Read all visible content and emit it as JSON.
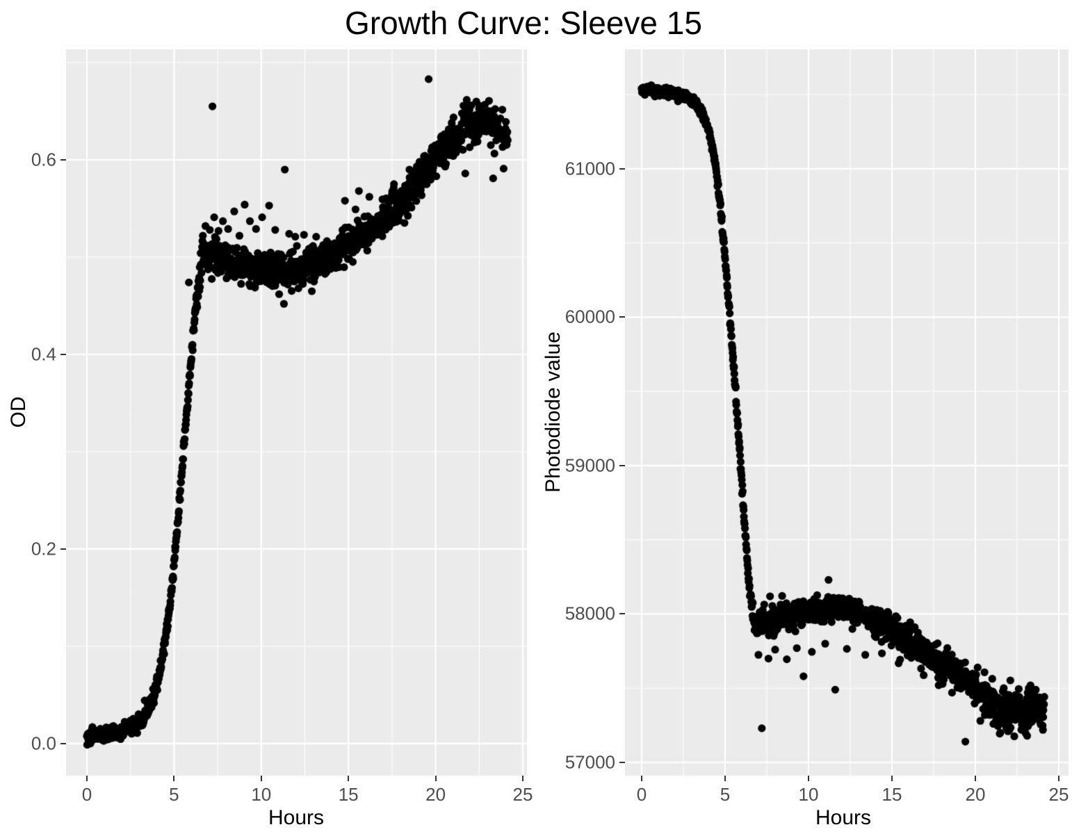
{
  "title": "Growth Curve: Sleeve 15",
  "colors": {
    "panel_background": "#EBEBEB",
    "grid_major": "#FFFFFF",
    "grid_minor": "#FFFFFF",
    "point": "#000000",
    "tick_label": "#4D4D4D",
    "tick_mark": "#333333",
    "axis_title": "#000000",
    "figure_background": "#FFFFFF"
  },
  "chart_data": [
    {
      "type": "scatter",
      "panel": "left",
      "xlabel": "Hours",
      "ylabel": "OD",
      "grid": true,
      "legend": "none",
      "xlim": [
        -1.196,
        25.239
      ],
      "ylim": [
        -0.0329,
        0.7136
      ],
      "x_ticks": {
        "values": [
          0,
          5,
          10,
          15,
          20,
          25
        ],
        "labels": [
          "0",
          "5",
          "10",
          "15",
          "20",
          "25"
        ]
      },
      "x_minor": [
        2.5,
        7.5,
        12.5,
        17.5,
        22.5
      ],
      "y_ticks": {
        "values": [
          0.0,
          0.2,
          0.4,
          0.6
        ],
        "labels": [
          "0.0",
          "0.2",
          "0.4",
          "0.6"
        ]
      },
      "y_minor": [
        0.1,
        0.3,
        0.5,
        0.7
      ],
      "n_points": 1400,
      "x_range_data": [
        0,
        24.15
      ],
      "point_radius": 5.6,
      "seed": 42,
      "trend": [
        [
          0,
          0.005
        ],
        [
          0.4,
          0.011
        ],
        [
          0.8,
          0.009
        ],
        [
          1.2,
          0.009
        ],
        [
          1.6,
          0.011
        ],
        [
          2.0,
          0.013
        ],
        [
          2.4,
          0.016
        ],
        [
          2.8,
          0.019
        ],
        [
          3.2,
          0.025
        ],
        [
          3.6,
          0.038
        ],
        [
          4.0,
          0.06
        ],
        [
          4.4,
          0.095
        ],
        [
          4.8,
          0.148
        ],
        [
          5.1,
          0.205
        ],
        [
          5.4,
          0.27
        ],
        [
          5.7,
          0.335
        ],
        [
          6.0,
          0.4
        ],
        [
          6.2,
          0.44
        ],
        [
          6.4,
          0.475
        ],
        [
          6.6,
          0.5
        ],
        [
          6.8,
          0.507
        ],
        [
          7.0,
          0.504
        ],
        [
          7.5,
          0.499
        ],
        [
          8.0,
          0.495
        ],
        [
          8.5,
          0.492
        ],
        [
          9.0,
          0.49
        ],
        [
          9.5,
          0.488
        ],
        [
          10.0,
          0.487
        ],
        [
          10.5,
          0.486
        ],
        [
          11.0,
          0.485
        ],
        [
          11.5,
          0.486
        ],
        [
          12.0,
          0.487
        ],
        [
          12.5,
          0.489
        ],
        [
          13.0,
          0.492
        ],
        [
          13.5,
          0.496
        ],
        [
          14.0,
          0.501
        ],
        [
          14.5,
          0.506
        ],
        [
          15.0,
          0.512
        ],
        [
          15.5,
          0.518
        ],
        [
          16.0,
          0.525
        ],
        [
          16.5,
          0.532
        ],
        [
          17.0,
          0.54
        ],
        [
          17.5,
          0.548
        ],
        [
          18.0,
          0.557
        ],
        [
          18.5,
          0.567
        ],
        [
          19.0,
          0.578
        ],
        [
          19.5,
          0.59
        ],
        [
          20.0,
          0.602
        ],
        [
          20.5,
          0.613
        ],
        [
          21.0,
          0.624
        ],
        [
          21.5,
          0.633
        ],
        [
          22.0,
          0.639
        ],
        [
          22.4,
          0.641
        ],
        [
          22.8,
          0.639
        ],
        [
          23.2,
          0.635
        ],
        [
          23.6,
          0.63
        ],
        [
          24.0,
          0.626
        ],
        [
          24.15,
          0.625
        ]
      ],
      "noise_sd_phases": [
        [
          2.5,
          0.0035
        ],
        [
          6.3,
          0.004
        ],
        [
          13,
          0.0085
        ],
        [
          20,
          0.0095
        ],
        [
          24.2,
          0.011
        ]
      ],
      "outliers": [
        [
          7.2,
          0.655
        ],
        [
          11.35,
          0.59
        ],
        [
          19.6,
          0.683
        ],
        [
          11.3,
          0.452
        ],
        [
          12.9,
          0.465
        ],
        [
          5.85,
          0.474
        ],
        [
          6.65,
          0.522
        ],
        [
          6.8,
          0.532
        ],
        [
          7.05,
          0.528
        ],
        [
          7.3,
          0.541
        ],
        [
          7.55,
          0.527
        ],
        [
          7.8,
          0.537
        ],
        [
          8.1,
          0.529
        ],
        [
          8.45,
          0.547
        ],
        [
          8.75,
          0.522
        ],
        [
          9.05,
          0.554
        ],
        [
          9.35,
          0.537
        ],
        [
          9.7,
          0.529
        ],
        [
          10.05,
          0.541
        ],
        [
          10.45,
          0.553
        ],
        [
          10.8,
          0.528
        ],
        [
          11.6,
          0.524
        ],
        [
          11.95,
          0.521
        ],
        [
          12.45,
          0.523
        ],
        [
          13.15,
          0.521
        ],
        [
          14.8,
          0.558
        ],
        [
          15.6,
          0.568
        ],
        [
          16.2,
          0.562
        ],
        [
          18.5,
          0.59
        ],
        [
          21.7,
          0.586
        ],
        [
          23.3,
          0.581
        ],
        [
          23.9,
          0.591
        ]
      ]
    },
    {
      "type": "scatter",
      "panel": "right",
      "xlabel": "Hours",
      "ylabel": "Photodiode value",
      "grid": true,
      "legend": "none",
      "xlim": [
        -1.0,
        25.583
      ],
      "ylim": [
        56911,
        61805
      ],
      "x_ticks": {
        "values": [
          0,
          5,
          10,
          15,
          20,
          25
        ],
        "labels": [
          "0",
          "5",
          "10",
          "15",
          "20",
          "25"
        ]
      },
      "x_minor": [
        2.5,
        7.5,
        12.5,
        17.5,
        22.5
      ],
      "y_ticks": {
        "values": [
          57000,
          58000,
          59000,
          60000,
          61000
        ],
        "labels": [
          "57000",
          "58000",
          "59000",
          "60000",
          "61000"
        ]
      },
      "y_minor": [
        57500,
        58500,
        59500,
        60500,
        61500
      ],
      "n_points": 1400,
      "x_range_data": [
        0,
        24.15
      ],
      "point_radius": 5.6,
      "seed": 1337,
      "trend": [
        [
          0,
          61530
        ],
        [
          0.3,
          61540
        ],
        [
          0.6,
          61525
        ],
        [
          1.0,
          61520
        ],
        [
          1.4,
          61515
        ],
        [
          1.8,
          61510
        ],
        [
          2.2,
          61500
        ],
        [
          2.6,
          61485
        ],
        [
          3.0,
          61460
        ],
        [
          3.4,
          61420
        ],
        [
          3.8,
          61330
        ],
        [
          4.1,
          61220
        ],
        [
          4.4,
          61050
        ],
        [
          4.7,
          60770
        ],
        [
          5.0,
          60400
        ],
        [
          5.3,
          59980
        ],
        [
          5.6,
          59530
        ],
        [
          5.9,
          59060
        ],
        [
          6.2,
          58560
        ],
        [
          6.4,
          58250
        ],
        [
          6.6,
          58030
        ],
        [
          6.8,
          57945
        ],
        [
          7.0,
          57945
        ],
        [
          7.5,
          57965
        ],
        [
          8.0,
          57980
        ],
        [
          8.5,
          57990
        ],
        [
          9.0,
          58000
        ],
        [
          9.5,
          58010
        ],
        [
          10.0,
          58020
        ],
        [
          10.5,
          58030
        ],
        [
          11.0,
          58038
        ],
        [
          11.5,
          58042
        ],
        [
          12.0,
          58038
        ],
        [
          12.5,
          58025
        ],
        [
          13.0,
          58005
        ],
        [
          13.5,
          57980
        ],
        [
          14.0,
          57955
        ],
        [
          14.5,
          57925
        ],
        [
          15.0,
          57895
        ],
        [
          15.5,
          57860
        ],
        [
          16.0,
          57825
        ],
        [
          16.5,
          57790
        ],
        [
          17.0,
          57752
        ],
        [
          17.5,
          57712
        ],
        [
          18.0,
          57672
        ],
        [
          18.5,
          57630
        ],
        [
          19.0,
          57588
        ],
        [
          19.5,
          57542
        ],
        [
          20.0,
          57495
        ],
        [
          20.5,
          57448
        ],
        [
          21.0,
          57408
        ],
        [
          21.5,
          57378
        ],
        [
          22.0,
          57360
        ],
        [
          22.5,
          57352
        ],
        [
          23.0,
          57355
        ],
        [
          23.5,
          57352
        ],
        [
          24.0,
          57358
        ],
        [
          24.15,
          57360
        ]
      ],
      "noise_sd_phases": [
        [
          3,
          16
        ],
        [
          6.4,
          18
        ],
        [
          14,
          42
        ],
        [
          20.5,
          52
        ],
        [
          24.2,
          68
        ]
      ],
      "outliers": [
        [
          7.2,
          57230
        ],
        [
          11.2,
          58230
        ],
        [
          19.4,
          57140
        ],
        [
          11.6,
          57490
        ],
        [
          6.9,
          57870
        ],
        [
          7.0,
          57725
        ],
        [
          7.6,
          57700
        ],
        [
          8.0,
          57760
        ],
        [
          8.7,
          57695
        ],
        [
          9.3,
          57770
        ],
        [
          9.7,
          57580
        ],
        [
          10.2,
          57745
        ],
        [
          11.0,
          57800
        ],
        [
          12.3,
          57765
        ],
        [
          13.4,
          57725
        ],
        [
          14.4,
          57735
        ],
        [
          15.4,
          57668
        ],
        [
          16.9,
          57588
        ],
        [
          17.8,
          57520
        ],
        [
          18.6,
          57470
        ],
        [
          20.3,
          57280
        ],
        [
          21.5,
          57200
        ],
        [
          22.6,
          57495
        ],
        [
          23.2,
          57500
        ]
      ]
    }
  ]
}
